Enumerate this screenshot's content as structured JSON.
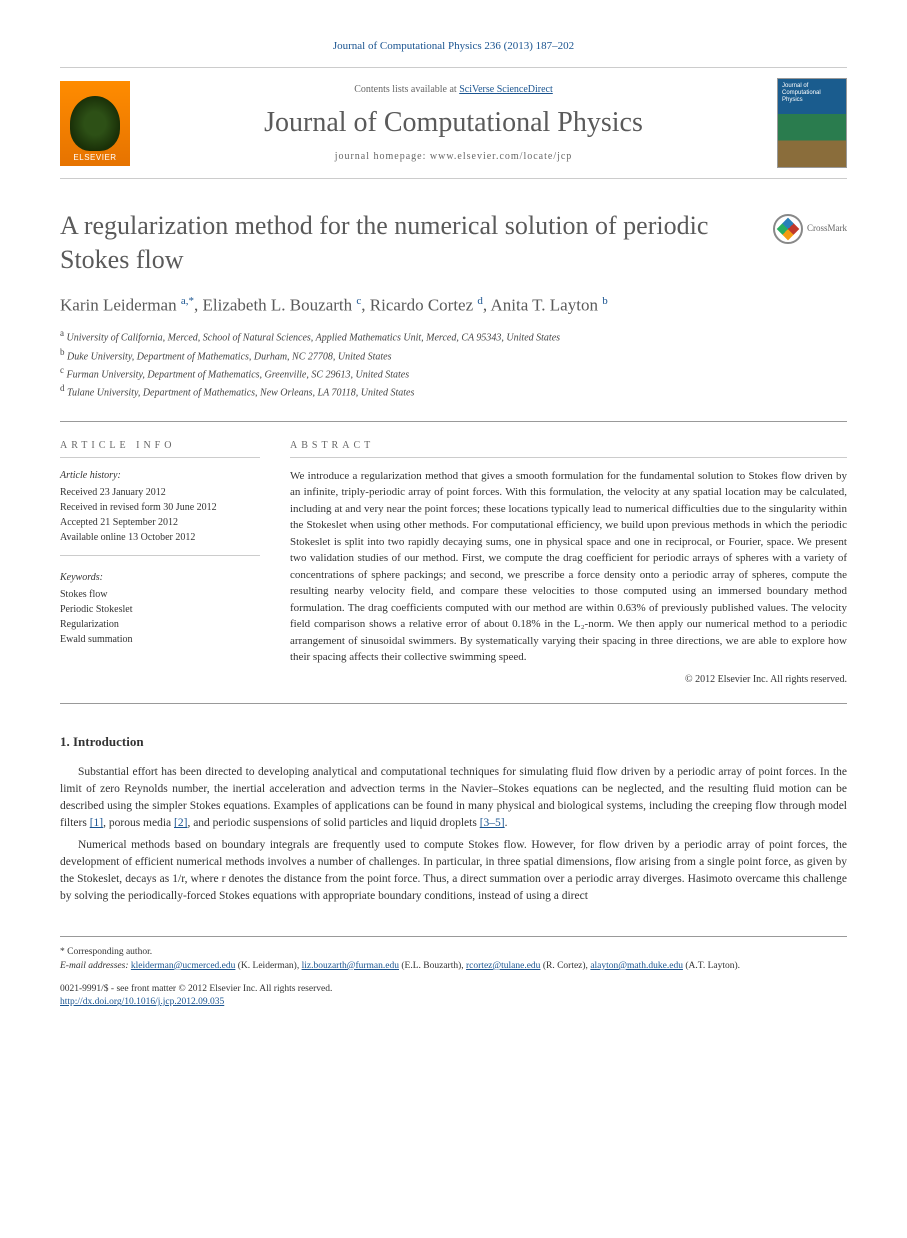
{
  "citation": "Journal of Computational Physics 236 (2013) 187–202",
  "banner": {
    "contents_prefix": "Contents lists available at ",
    "contents_link": "SciVerse ScienceDirect",
    "journal_name": "Journal of Computational Physics",
    "homepage_prefix": "journal homepage: ",
    "homepage_url": "www.elsevier.com/locate/jcp",
    "elsevier_label": "ELSEVIER",
    "cover_title": "Journal of Computational Physics"
  },
  "title": "A regularization method for the numerical solution of periodic Stokes flow",
  "crossmark_label": "CrossMark",
  "authors_html": "Karin Leiderman <sup>a,*</sup>, Elizabeth L. Bouzarth <sup>c</sup>, Ricardo Cortez <sup>d</sup>, Anita T. Layton <sup>b</sup>",
  "affiliations": [
    {
      "sup": "a",
      "text": "University of California, Merced, School of Natural Sciences, Applied Mathematics Unit, Merced, CA 95343, United States"
    },
    {
      "sup": "b",
      "text": "Duke University, Department of Mathematics, Durham, NC 27708, United States"
    },
    {
      "sup": "c",
      "text": "Furman University, Department of Mathematics, Greenville, SC 29613, United States"
    },
    {
      "sup": "d",
      "text": "Tulane University, Department of Mathematics, New Orleans, LA 70118, United States"
    }
  ],
  "article_info": {
    "heading": "ARTICLE INFO",
    "history_label": "Article history:",
    "history": [
      "Received 23 January 2012",
      "Received in revised form 30 June 2012",
      "Accepted 21 September 2012",
      "Available online 13 October 2012"
    ],
    "keywords_label": "Keywords:",
    "keywords": [
      "Stokes flow",
      "Periodic Stokeslet",
      "Regularization",
      "Ewald summation"
    ]
  },
  "abstract": {
    "heading": "ABSTRACT",
    "text": "We introduce a regularization method that gives a smooth formulation for the fundamental solution to Stokes flow driven by an infinite, triply-periodic array of point forces. With this formulation, the velocity at any spatial location may be calculated, including at and very near the point forces; these locations typically lead to numerical difficulties due to the singularity within the Stokeslet when using other methods. For computational efficiency, we build upon previous methods in which the periodic Stokeslet is split into two rapidly decaying sums, one in physical space and one in reciprocal, or Fourier, space. We present two validation studies of our method. First, we compute the drag coefficient for periodic arrays of spheres with a variety of concentrations of sphere packings; and second, we prescribe a force density onto a periodic array of spheres, compute the resulting nearby velocity field, and compare these velocities to those computed using an immersed boundary method formulation. The drag coefficients computed with our method are within 0.63% of previously published values. The velocity field comparison shows a relative error of about 0.18% in the L₂-norm. We then apply our numerical method to a periodic arrangement of sinusoidal swimmers. By systematically varying their spacing in three directions, we are able to explore how their spacing affects their collective swimming speed.",
    "copyright": "© 2012 Elsevier Inc. All rights reserved."
  },
  "sections": {
    "intro_heading": "1. Introduction",
    "para1": "Substantial effort has been directed to developing analytical and computational techniques for simulating fluid flow driven by a periodic array of point forces. In the limit of zero Reynolds number, the inertial acceleration and advection terms in the Navier–Stokes equations can be neglected, and the resulting fluid motion can be described using the simpler Stokes equations. Examples of applications can be found in many physical and biological systems, including the creeping flow through model filters [1], porous media [2], and periodic suspensions of solid particles and liquid droplets [3–5].",
    "para2": "Numerical methods based on boundary integrals are frequently used to compute Stokes flow. However, for flow driven by a periodic array of point forces, the development of efficient numerical methods involves a number of challenges. In particular, in three spatial dimensions, flow arising from a single point force, as given by the Stokeslet, decays as 1/r, where r denotes the distance from the point force. Thus, a direct summation over a periodic array diverges. Hasimoto overcame this challenge by solving the periodically-forced Stokes equations with appropriate boundary conditions, instead of using a direct"
  },
  "footer": {
    "corresponding": "* Corresponding author.",
    "email_label": "E-mail addresses: ",
    "emails": [
      {
        "addr": "kleiderman@ucmerced.edu",
        "who": "(K. Leiderman)"
      },
      {
        "addr": "liz.bouzarth@furman.edu",
        "who": "(E.L. Bouzarth)"
      },
      {
        "addr": "rcortez@tulane.edu",
        "who": "(R. Cortez)"
      },
      {
        "addr": "alayton@math.duke.edu",
        "who": "(A.T. Layton)"
      }
    ],
    "issn_line": "0021-9991/$ - see front matter © 2012 Elsevier Inc. All rights reserved.",
    "doi": "http://dx.doi.org/10.1016/j.jcp.2012.09.035"
  },
  "colors": {
    "link": "#1a5490",
    "heading_gray": "#5a5a5a",
    "elsevier_orange": "#ff8c00"
  }
}
